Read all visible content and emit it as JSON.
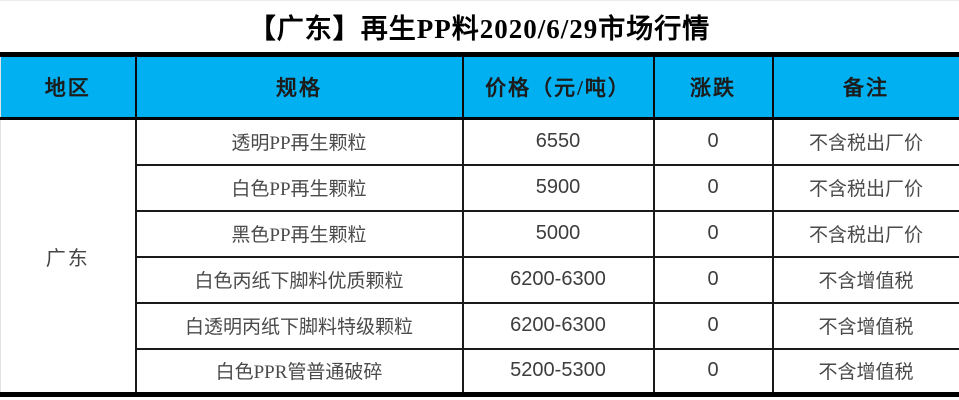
{
  "title": "【广东】再生PP料2020/6/29市场行情",
  "table": {
    "headers": [
      "地区",
      "规格",
      "价格（元/吨）",
      "涨跌",
      "备注"
    ],
    "region": "广东",
    "rows": [
      {
        "spec": "透明PP再生颗粒",
        "price": "6550",
        "change": "0",
        "note": "不含税出厂价"
      },
      {
        "spec": "白色PP再生颗粒",
        "price": "5900",
        "change": "0",
        "note": "不含税出厂价"
      },
      {
        "spec": "黑色PP再生颗粒",
        "price": "5000",
        "change": "0",
        "note": "不含税出厂价"
      },
      {
        "spec": "白色丙纸下脚料优质颗粒",
        "price": "6200-6300",
        "change": "0",
        "note": "不含增值税"
      },
      {
        "spec": "白透明丙纸下脚料特级颗粒",
        "price": "6200-6300",
        "change": "0",
        "note": "不含增值税"
      },
      {
        "spec": "白色PPR管普通破碎",
        "price": "5200-5300",
        "change": "0",
        "note": "不含增值税"
      }
    ]
  },
  "colors": {
    "header_bg": "#00B0F0",
    "thick_border": "#000000",
    "thin_border": "#1a1a1a",
    "title_text": "#000000",
    "body_text": "#4a4a4a"
  },
  "chart_data": {
    "type": "table",
    "title": "【广东】再生PP料2020/6/29市场行情",
    "columns": [
      "地区",
      "规格",
      "价格（元/吨）",
      "涨跌",
      "备注"
    ],
    "rows": [
      [
        "广东",
        "透明PP再生颗粒",
        "6550",
        "0",
        "不含税出厂价"
      ],
      [
        "广东",
        "白色PP再生颗粒",
        "5900",
        "0",
        "不含税出厂价"
      ],
      [
        "广东",
        "黑色PP再生颗粒",
        "5000",
        "0",
        "不含税出厂价"
      ],
      [
        "广东",
        "白色丙纸下脚料优质颗粒",
        "6200-6300",
        "0",
        "不含增值税"
      ],
      [
        "广东",
        "白透明丙纸下脚料特级颗粒",
        "6200-6300",
        "0",
        "不含增值税"
      ],
      [
        "广东",
        "白色PPR管普通破碎",
        "5200-5300",
        "0",
        "不含增值税"
      ]
    ]
  }
}
